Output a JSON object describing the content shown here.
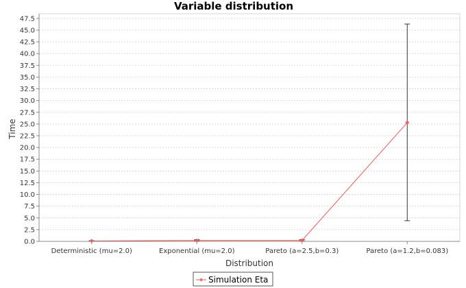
{
  "chart_data": {
    "type": "line",
    "title": "Variable distribution",
    "xlabel": "Distribution",
    "ylabel": "Time",
    "categories": [
      "Deterministic (mu=2.0)",
      "Exponential (mu=2.0)",
      "Pareto (a=2.5,b=0.3)",
      "Pareto (a=1.2,b=0.083)"
    ],
    "ylim": [
      0,
      48.5
    ],
    "ytick_step": 2.5,
    "grid": true,
    "legend_position": "bottom-center",
    "series": [
      {
        "name": "Simulation Eta",
        "color": "#ff5555",
        "values": [
          0.1,
          0.2,
          0.2,
          25.3
        ],
        "error_low": [
          0.05,
          0.1,
          0.05,
          4.4
        ],
        "error_high": [
          0.15,
          0.35,
          0.35,
          46.3
        ]
      }
    ]
  }
}
